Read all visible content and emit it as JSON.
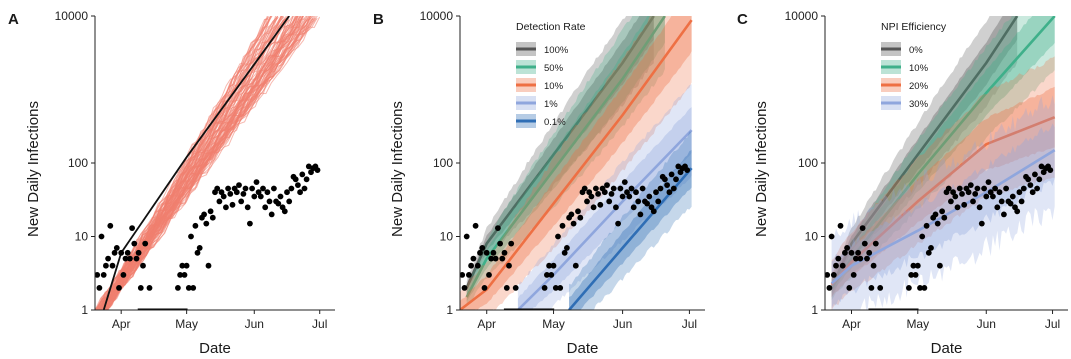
{
  "chart_data": [
    {
      "type": "line",
      "panel": "A",
      "xlabel": "Date",
      "ylabel": "New Daily Infections",
      "yscale": "log",
      "ylim": [
        1,
        10000
      ],
      "xlim": [
        "2020-03-20",
        "2020-07-08"
      ],
      "x_ticks": [
        {
          "date": "2020-04-01",
          "label": "Apr"
        },
        {
          "date": "2020-05-01",
          "label": "May"
        },
        {
          "date": "2020-06-01",
          "label": "Jun"
        },
        {
          "date": "2020-07-01",
          "label": "Jul"
        }
      ],
      "y_ticks": [
        1,
        10,
        100,
        10000
      ],
      "grid": false,
      "ensemble": {
        "color": "#f08070",
        "start": "2020-03-23",
        "end_at_ylim": "2020-06-17",
        "end_spread_days": [
          -10,
          14
        ]
      },
      "series": [
        {
          "color": "#111111",
          "values": [
            {
              "x": "2020-03-24",
              "y": 1
            },
            {
              "x": "2020-04-01",
              "y": 6
            },
            {
              "x": "2020-05-01",
              "y": 120
            },
            {
              "x": "2020-06-01",
              "y": 2200
            },
            {
              "x": "2020-06-17",
              "y": 10000
            }
          ]
        }
      ],
      "observed_color": "#000000"
    },
    {
      "type": "area",
      "panel": "B",
      "xlabel": "Date",
      "ylabel": "New Daily Infections",
      "yscale": "log",
      "ylim": [
        1,
        10000
      ],
      "xlim": [
        "2020-03-20",
        "2020-07-08"
      ],
      "x_ticks": [
        {
          "date": "2020-04-01",
          "label": "Apr"
        },
        {
          "date": "2020-05-01",
          "label": "May"
        },
        {
          "date": "2020-06-01",
          "label": "Jun"
        },
        {
          "date": "2020-07-01",
          "label": "Jul"
        }
      ],
      "y_ticks": [
        1,
        10,
        100,
        10000
      ],
      "grid": false,
      "legend": {
        "title": "Detection Rate",
        "position": "top"
      },
      "series": [
        {
          "name": "100%",
          "color": "#555555",
          "values": [
            {
              "x": "2020-03-23",
              "y": 2
            },
            {
              "x": "2020-04-01",
              "y": 8
            },
            {
              "x": "2020-05-01",
              "y": 130
            },
            {
              "x": "2020-06-01",
              "y": 2300
            },
            {
              "x": "2020-06-15",
              "y": 10000
            }
          ],
          "band": [
            1.2,
            4.0
          ]
        },
        {
          "name": "50%",
          "color": "#3fb08a",
          "values": [
            {
              "x": "2020-03-23",
              "y": 1.5
            },
            {
              "x": "2020-04-01",
              "y": 5
            },
            {
              "x": "2020-05-01",
              "y": 80
            },
            {
              "x": "2020-06-01",
              "y": 1400
            },
            {
              "x": "2020-06-20",
              "y": 10000
            }
          ],
          "band": [
            1.3,
            5.0
          ]
        },
        {
          "name": "10%",
          "color": "#ee7044",
          "values": [
            {
              "x": "2020-03-20",
              "y": 1
            },
            {
              "x": "2020-04-01",
              "y": 1.9
            },
            {
              "x": "2020-05-01",
              "y": 28
            },
            {
              "x": "2020-06-01",
              "y": 450
            },
            {
              "x": "2020-07-02",
              "y": 8800
            }
          ],
          "band": [
            1.6,
            7.0
          ]
        },
        {
          "name": "1%",
          "color": "#8fa6dd",
          "values": [
            {
              "x": "2020-04-15",
              "y": 1
            },
            {
              "x": "2020-05-01",
              "y": 3
            },
            {
              "x": "2020-06-01",
              "y": 30
            },
            {
              "x": "2020-07-02",
              "y": 280
            }
          ],
          "band": [
            2.0,
            4.0
          ]
        },
        {
          "name": "0.1%",
          "color": "#2f6eb5",
          "values": [
            {
              "x": "2020-05-08",
              "y": 1
            },
            {
              "x": "2020-06-01",
              "y": 7
            },
            {
              "x": "2020-07-02",
              "y": 85
            }
          ],
          "band": [
            2.0,
            3.0
          ]
        }
      ],
      "observed_color": "#000000"
    },
    {
      "type": "area",
      "panel": "C",
      "xlabel": "Date",
      "ylabel": "New Daily Infections",
      "yscale": "log",
      "ylim": [
        1,
        10000
      ],
      "xlim": [
        "2020-03-20",
        "2020-07-08"
      ],
      "x_ticks": [
        {
          "date": "2020-04-01",
          "label": "Apr"
        },
        {
          "date": "2020-05-01",
          "label": "May"
        },
        {
          "date": "2020-06-01",
          "label": "Jun"
        },
        {
          "date": "2020-07-01",
          "label": "Jul"
        }
      ],
      "y_ticks": [
        1,
        10,
        100,
        10000
      ],
      "grid": false,
      "legend": {
        "title": "NPI Efficiency",
        "position": "top"
      },
      "series": [
        {
          "name": "0%",
          "color": "#555555",
          "values": [
            {
              "x": "2020-03-23",
              "y": 2
            },
            {
              "x": "2020-04-01",
              "y": 8
            },
            {
              "x": "2020-05-01",
              "y": 130
            },
            {
              "x": "2020-06-01",
              "y": 2300
            },
            {
              "x": "2020-06-15",
              "y": 10000
            }
          ],
          "band": [
            1.2,
            4.0
          ]
        },
        {
          "name": "10%",
          "color": "#3fb08a",
          "values": [
            {
              "x": "2020-03-23",
              "y": 2
            },
            {
              "x": "2020-04-01",
              "y": 5
            },
            {
              "x": "2020-05-01",
              "y": 70
            },
            {
              "x": "2020-06-01",
              "y": 900
            },
            {
              "x": "2020-07-02",
              "y": 10000
            }
          ],
          "band": [
            1.3,
            5.0
          ]
        },
        {
          "name": "20%",
          "color": "#ee7044",
          "values": [
            {
              "x": "2020-03-23",
              "y": 2.2
            },
            {
              "x": "2020-04-01",
              "y": 4.5
            },
            {
              "x": "2020-05-01",
              "y": 30
            },
            {
              "x": "2020-06-01",
              "y": 180
            },
            {
              "x": "2020-07-02",
              "y": 420
            }
          ],
          "band": [
            2.0,
            6.0
          ]
        },
        {
          "name": "30%",
          "color": "#8fa6dd",
          "values": [
            {
              "x": "2020-03-23",
              "y": 2.3
            },
            {
              "x": "2020-04-01",
              "y": 4
            },
            {
              "x": "2020-05-01",
              "y": 12
            },
            {
              "x": "2020-06-01",
              "y": 40
            },
            {
              "x": "2020-07-02",
              "y": 150
            }
          ],
          "band": [
            3.0,
            4.0
          ]
        }
      ],
      "observed_color": "#000000"
    }
  ],
  "observed": [
    {
      "x": "2020-03-21",
      "y": 3
    },
    {
      "x": "2020-03-22",
      "y": 2
    },
    {
      "x": "2020-03-23",
      "y": 10
    },
    {
      "x": "2020-03-24",
      "y": 3
    },
    {
      "x": "2020-03-25",
      "y": 4
    },
    {
      "x": "2020-03-26",
      "y": 5
    },
    {
      "x": "2020-03-27",
      "y": 14
    },
    {
      "x": "2020-03-28",
      "y": 4
    },
    {
      "x": "2020-03-29",
      "y": 6
    },
    {
      "x": "2020-03-30",
      "y": 7
    },
    {
      "x": "2020-03-31",
      "y": 2
    },
    {
      "x": "2020-04-01",
      "y": 6
    },
    {
      "x": "2020-04-02",
      "y": 3
    },
    {
      "x": "2020-04-03",
      "y": 5
    },
    {
      "x": "2020-04-04",
      "y": 6
    },
    {
      "x": "2020-04-05",
      "y": 5
    },
    {
      "x": "2020-04-06",
      "y": 13
    },
    {
      "x": "2020-04-07",
      "y": 8
    },
    {
      "x": "2020-04-08",
      "y": 5
    },
    {
      "x": "2020-04-09",
      "y": 6
    },
    {
      "x": "2020-04-10",
      "y": 2
    },
    {
      "x": "2020-04-11",
      "y": 4
    },
    {
      "x": "2020-04-12",
      "y": 8
    },
    {
      "x": "2020-04-14",
      "y": 2
    },
    {
      "x": "2020-04-27",
      "y": 2
    },
    {
      "x": "2020-04-28",
      "y": 3
    },
    {
      "x": "2020-04-29",
      "y": 4
    },
    {
      "x": "2020-04-30",
      "y": 3
    },
    {
      "x": "2020-05-01",
      "y": 4
    },
    {
      "x": "2020-05-02",
      "y": 2
    },
    {
      "x": "2020-05-03",
      "y": 10
    },
    {
      "x": "2020-05-04",
      "y": 2
    },
    {
      "x": "2020-05-05",
      "y": 14
    },
    {
      "x": "2020-05-06",
      "y": 6
    },
    {
      "x": "2020-05-07",
      "y": 7
    },
    {
      "x": "2020-05-08",
      "y": 18
    },
    {
      "x": "2020-05-09",
      "y": 20
    },
    {
      "x": "2020-05-10",
      "y": 15
    },
    {
      "x": "2020-05-11",
      "y": 4
    },
    {
      "x": "2020-05-12",
      "y": 22
    },
    {
      "x": "2020-05-13",
      "y": 18
    },
    {
      "x": "2020-05-14",
      "y": 40
    },
    {
      "x": "2020-05-15",
      "y": 45
    },
    {
      "x": "2020-05-16",
      "y": 30
    },
    {
      "x": "2020-05-17",
      "y": 40
    },
    {
      "x": "2020-05-18",
      "y": 35
    },
    {
      "x": "2020-05-19",
      "y": 25
    },
    {
      "x": "2020-05-20",
      "y": 45
    },
    {
      "x": "2020-05-21",
      "y": 38
    },
    {
      "x": "2020-05-22",
      "y": 27
    },
    {
      "x": "2020-05-23",
      "y": 45
    },
    {
      "x": "2020-05-24",
      "y": 40
    },
    {
      "x": "2020-05-25",
      "y": 50
    },
    {
      "x": "2020-05-26",
      "y": 30
    },
    {
      "x": "2020-05-27",
      "y": 38
    },
    {
      "x": "2020-05-28",
      "y": 45
    },
    {
      "x": "2020-05-29",
      "y": 25
    },
    {
      "x": "2020-05-30",
      "y": 15
    },
    {
      "x": "2020-05-31",
      "y": 45
    },
    {
      "x": "2020-06-01",
      "y": 35
    },
    {
      "x": "2020-06-02",
      "y": 55
    },
    {
      "x": "2020-06-03",
      "y": 40
    },
    {
      "x": "2020-06-04",
      "y": 35
    },
    {
      "x": "2020-06-05",
      "y": 45
    },
    {
      "x": "2020-06-06",
      "y": 25
    },
    {
      "x": "2020-06-07",
      "y": 40
    },
    {
      "x": "2020-06-08",
      "y": 30
    },
    {
      "x": "2020-06-09",
      "y": 20
    },
    {
      "x": "2020-06-10",
      "y": 45
    },
    {
      "x": "2020-06-11",
      "y": 30
    },
    {
      "x": "2020-06-12",
      "y": 28
    },
    {
      "x": "2020-06-13",
      "y": 35
    },
    {
      "x": "2020-06-14",
      "y": 25
    },
    {
      "x": "2020-06-15",
      "y": 22
    },
    {
      "x": "2020-06-16",
      "y": 40
    },
    {
      "x": "2020-06-17",
      "y": 30
    },
    {
      "x": "2020-06-18",
      "y": 45
    },
    {
      "x": "2020-06-19",
      "y": 65
    },
    {
      "x": "2020-06-20",
      "y": 60
    },
    {
      "x": "2020-06-21",
      "y": 50
    },
    {
      "x": "2020-06-22",
      "y": 40
    },
    {
      "x": "2020-06-23",
      "y": 70
    },
    {
      "x": "2020-06-24",
      "y": 45
    },
    {
      "x": "2020-06-25",
      "y": 60
    },
    {
      "x": "2020-06-26",
      "y": 90
    },
    {
      "x": "2020-06-27",
      "y": 75
    },
    {
      "x": "2020-06-28",
      "y": 85
    },
    {
      "x": "2020-06-29",
      "y": 90
    },
    {
      "x": "2020-06-30",
      "y": 80
    }
  ],
  "observed_zero_days": [
    "2020-04-15",
    "2020-04-17",
    "2020-04-19",
    "2020-04-21",
    "2020-04-23",
    "2020-04-25"
  ]
}
